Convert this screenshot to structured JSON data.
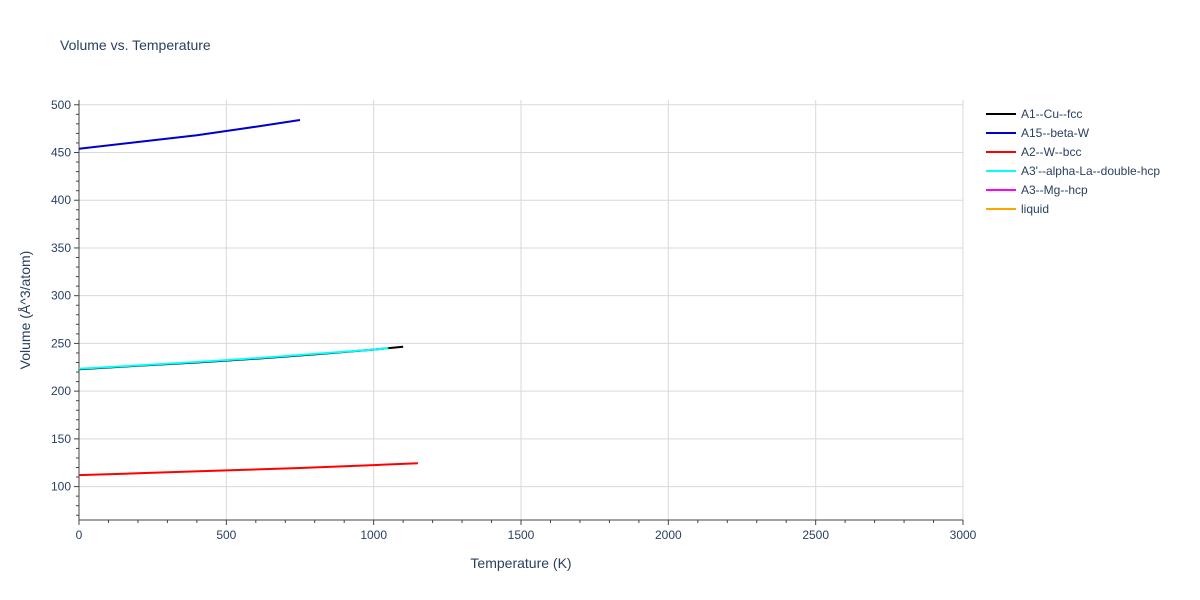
{
  "chart_data": {
    "type": "line",
    "title": "Volume vs. Temperature",
    "xlabel": "Temperature (K)",
    "ylabel": "Volume (Å^3/atom)",
    "xlim": [
      0,
      3000
    ],
    "ylim": [
      65,
      505
    ],
    "xticks": [
      0,
      500,
      1000,
      1500,
      2000,
      2500,
      3000
    ],
    "yticks": [
      100,
      150,
      200,
      250,
      300,
      350,
      400,
      450,
      500
    ],
    "grid": true,
    "legend_position": "right",
    "series": [
      {
        "name": "A1--Cu--fcc",
        "color": "#000000",
        "x": [
          0,
          200,
          400,
          600,
          800,
          1000,
          1100
        ],
        "y": [
          223,
          226.5,
          230,
          234,
          238.5,
          243.5,
          246.5
        ]
      },
      {
        "name": "A15--beta-W",
        "color": "#0000cd",
        "x": [
          0,
          200,
          400,
          600,
          750
        ],
        "y": [
          454,
          461,
          468,
          477,
          484
        ]
      },
      {
        "name": "A2--W--bcc",
        "color": "#ff0000",
        "x": [
          0,
          250,
          500,
          750,
          1000,
          1150
        ],
        "y": [
          112,
          114.5,
          117,
          119.5,
          122.5,
          124.5
        ]
      },
      {
        "name": "A3'--alpha-La--double-hcp",
        "color": "#00ffff",
        "x": [
          0,
          200,
          400,
          600,
          800,
          1000,
          1050
        ],
        "y": [
          223.5,
          227,
          230.5,
          234.5,
          239,
          243.5,
          245
        ]
      },
      {
        "name": "A3--Mg--hcp",
        "color": "#ff00ff",
        "x": [],
        "y": []
      },
      {
        "name": "liquid",
        "color": "#ffa500",
        "x": [],
        "y": []
      }
    ]
  }
}
